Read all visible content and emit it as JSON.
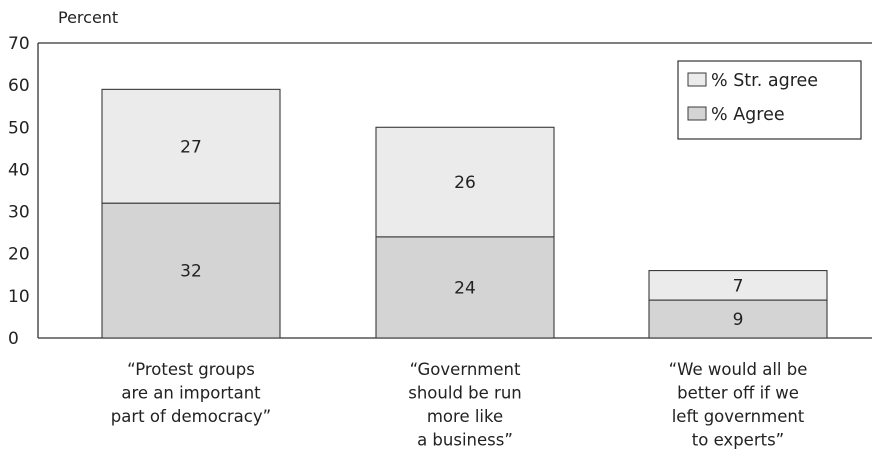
{
  "chart_data": {
    "type": "bar",
    "stacked": true,
    "ylabel": "Percent",
    "ylim": [
      0,
      70
    ],
    "yticks": [
      0,
      10,
      20,
      30,
      40,
      50,
      60,
      70
    ],
    "grid": false,
    "legend_position": "top-right",
    "categories": [
      [
        "“Protest groups",
        "are an important",
        "part of democracy”"
      ],
      [
        "“Government",
        "should be run",
        "more like",
        "a business”"
      ],
      [
        "“We would all be",
        "better off if we",
        "left government",
        "to experts”"
      ]
    ],
    "series": [
      {
        "name": "% Agree",
        "values": [
          32,
          24,
          9
        ],
        "color": "#d4d4d4"
      },
      {
        "name": "% Str. agree",
        "values": [
          27,
          26,
          7
        ],
        "color": "#ebebeb"
      }
    ],
    "legend_order": [
      "% Str. agree",
      "% Agree"
    ]
  }
}
